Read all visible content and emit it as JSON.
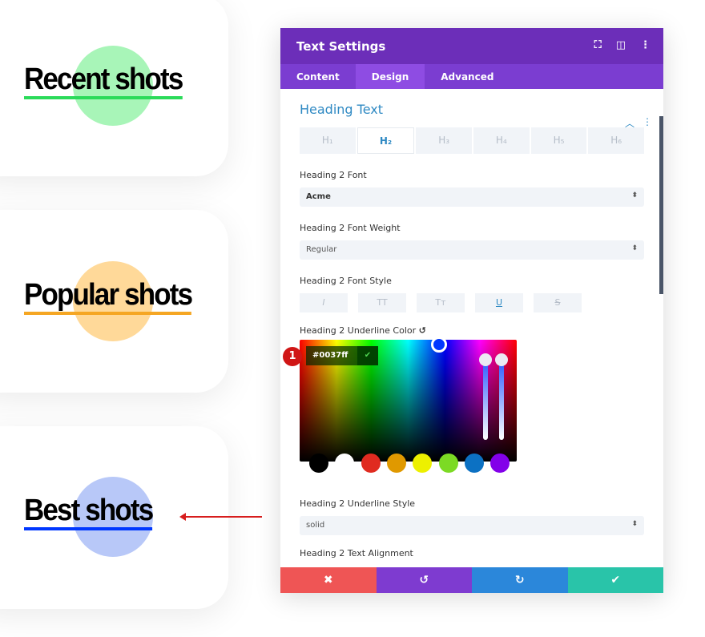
{
  "shots": [
    {
      "label": "Recent shots",
      "circle": "#a8f5b8",
      "underline": "#2bdb5a"
    },
    {
      "label": "Popular shots",
      "circle": "#ffd999",
      "underline": "#f5a623"
    },
    {
      "label": "Best shots",
      "circle": "#b8c8f8",
      "underline": "#0037ff"
    }
  ],
  "panel": {
    "title": "Text Settings",
    "header_icons": [
      "expand-icon",
      "split-view-icon",
      "more-vertical-icon"
    ],
    "tabs": [
      "Content",
      "Design",
      "Advanced"
    ],
    "active_tab": "Design",
    "section": "Heading Text",
    "heading_tabs": [
      "H₁",
      "H₂",
      "H₃",
      "H₄",
      "H₅",
      "H₆"
    ],
    "font_label": "Heading 2 Font",
    "font_value": "Acme",
    "weight_label": "Heading 2 Font Weight",
    "weight_value": "Regular",
    "style_label": "Heading 2 Font Style",
    "style_buttons": [
      "I",
      "TT",
      "Tт",
      "U",
      "S"
    ],
    "underline_color_label": "Heading 2 Underline Color",
    "hex_value": "#0037ff",
    "badge": "1",
    "swatches": [
      "#000000",
      "#ffffff",
      "#e02b20",
      "#e09900",
      "#edf000",
      "#7cda24",
      "#0c71c3",
      "#8300e9"
    ],
    "underline_style_label": "Heading 2 Underline Style",
    "underline_style_value": "solid",
    "alignment_label": "Heading 2 Text Alignment",
    "footer": [
      {
        "icon": "✖",
        "color": "#ef5555"
      },
      {
        "icon": "↺",
        "color": "#7e3bd0"
      },
      {
        "icon": "↻",
        "color": "#2b87da"
      },
      {
        "icon": "✔",
        "color": "#29c4a9"
      }
    ]
  }
}
